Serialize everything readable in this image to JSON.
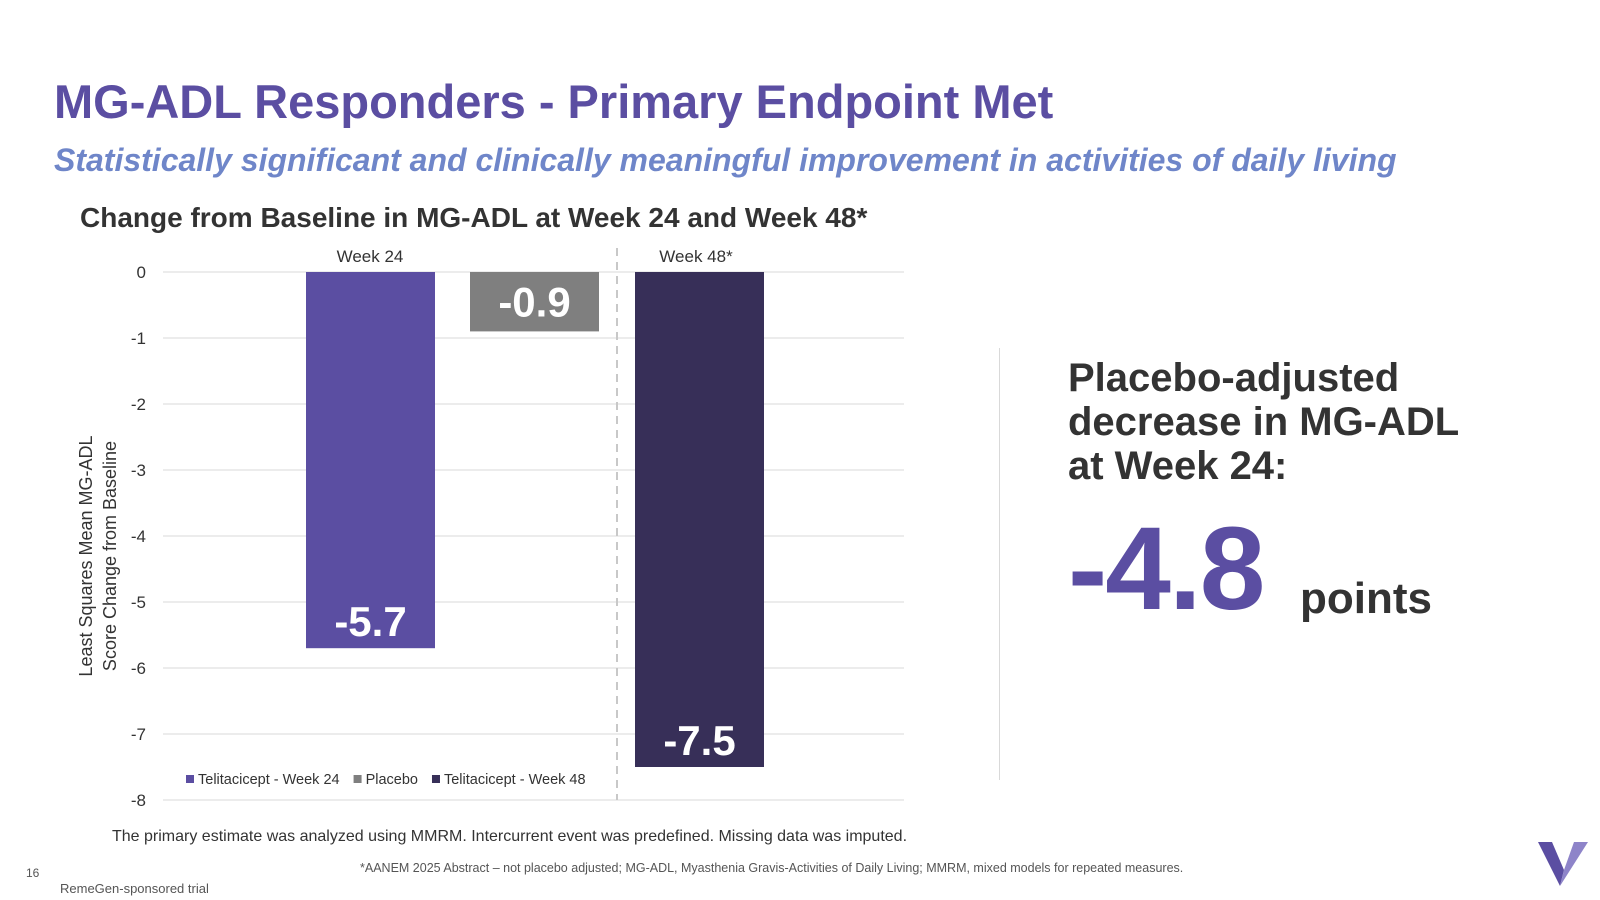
{
  "header": {
    "title": "MG-ADL Responders - Primary Endpoint Met",
    "subtitle": "Statistically significant and clinically meaningful improvement in activities of daily living"
  },
  "chart_data": {
    "type": "bar",
    "title": "Change from Baseline in MG-ADL at Week 24 and Week 48*",
    "ylabel": [
      "Least Squares Mean MG-ADL",
      "Score Change from Baseline"
    ],
    "ylim": [
      -8,
      0
    ],
    "yticks": [
      0,
      -1,
      -2,
      -3,
      -4,
      -5,
      -6,
      -7,
      -8
    ],
    "grid": true,
    "groups": [
      "Week 24",
      "Week 48*"
    ],
    "series": [
      {
        "name": "Telitacicept - Week 24",
        "group": "Week 24",
        "value": -5.7,
        "label": "-5.7",
        "color": "#5b4ea2"
      },
      {
        "name": "Placebo",
        "group": "Week 24",
        "value": -0.9,
        "label": "-0.9",
        "color": "#7f7f7f"
      },
      {
        "name": "Telitacicept - Week 48",
        "group": "Week 48*",
        "value": -7.5,
        "label": "-7.5",
        "color": "#372f58"
      }
    ],
    "legend": [
      "Telitacicept - Week 24",
      "Placebo",
      "Telitacicept - Week 48"
    ],
    "legend_position": "bottom-left"
  },
  "callout": {
    "heading_lines": [
      "Placebo-adjusted",
      "decrease in MG-ADL",
      "at Week 24:"
    ],
    "value": "-4.8",
    "unit": "points"
  },
  "footer": {
    "method_note": "The primary estimate was analyzed using MMRM. Intercurrent event was predefined. Missing data was imputed.",
    "footnote": "*AANEM 2025 Abstract – not placebo adjusted; MG-ADL, Myasthenia Gravis-Activities of Daily Living; MMRM, mixed models for repeated measures.",
    "page_number": "16",
    "sponsor": "RemeGen-sponsored trial"
  },
  "colors": {
    "brand_purple": "#5b4ea2",
    "subtitle_blue": "#6f86c9",
    "dark_purple": "#372f58",
    "placebo_gray": "#7f7f7f"
  },
  "logo": {
    "icon": "v-logo-icon"
  }
}
